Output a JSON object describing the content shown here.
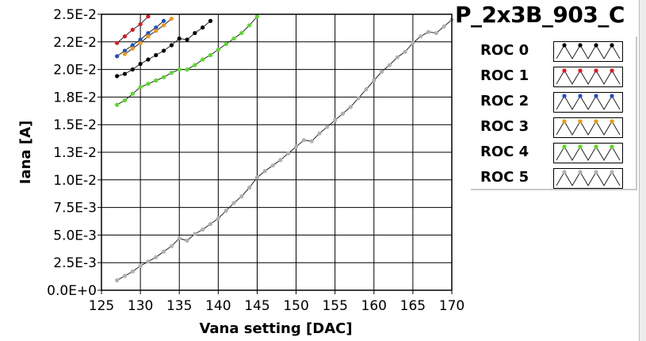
{
  "title": "P_2x3B_903_C",
  "colors": {
    "background": "#ffffff",
    "grid": "#000000",
    "ROC 0": "#000000",
    "ROC 1": "#e0181e",
    "ROC 2": "#1f4fc8",
    "ROC 3": "#f0960f",
    "ROC 4": "#55dd22",
    "ROC 5": "#b0b0b0"
  },
  "chart_data": {
    "type": "line",
    "title": "P_2x3B_903_C",
    "xlabel": "Vana setting [DAC]",
    "ylabel": "Iana [A]",
    "xlim": [
      125,
      170
    ],
    "ylim": [
      0,
      0.025
    ],
    "x_ticks": [
      125,
      130,
      135,
      140,
      145,
      150,
      155,
      160,
      165,
      170
    ],
    "x_tick_labels": [
      "125",
      "130",
      "135",
      "140",
      "145",
      "150",
      "155",
      "160",
      "165",
      "170"
    ],
    "y_ticks": [
      0,
      0.0025,
      0.005,
      0.0075,
      0.01,
      0.0125,
      0.015,
      0.0175,
      0.02,
      0.0225,
      0.025
    ],
    "y_tick_labels": [
      "0.0E+0",
      "2.5E-3",
      "5.0E-3",
      "7.5E-3",
      "1.0E-2",
      "1.3E-2",
      "1.5E-2",
      "1.8E-2",
      "2.0E-2",
      "2.2E-2",
      "2.5E-2"
    ],
    "grid": true,
    "legend_position": "right",
    "series": [
      {
        "name": "ROC 0",
        "color": "#000000",
        "x": [
          127,
          128,
          129,
          130,
          131,
          132,
          133,
          134,
          135,
          136,
          137,
          138,
          139
        ],
        "y": [
          0.0194,
          0.0196,
          0.02,
          0.0205,
          0.0209,
          0.0213,
          0.0217,
          0.0222,
          0.0228,
          0.0227,
          0.0233,
          0.0238,
          0.0244
        ]
      },
      {
        "name": "ROC 1",
        "color": "#e0181e",
        "x": [
          127,
          128,
          129,
          130,
          131
        ],
        "y": [
          0.0224,
          0.023,
          0.0236,
          0.0241,
          0.0248
        ]
      },
      {
        "name": "ROC 2",
        "color": "#1f4fc8",
        "x": [
          127,
          128,
          129,
          130,
          131,
          132,
          133
        ],
        "y": [
          0.0212,
          0.0217,
          0.0222,
          0.0227,
          0.0233,
          0.0238,
          0.0244
        ]
      },
      {
        "name": "ROC 3",
        "color": "#f0960f",
        "x": [
          128,
          129,
          130,
          131,
          132,
          133,
          134
        ],
        "y": [
          0.0214,
          0.0219,
          0.0224,
          0.023,
          0.0235,
          0.024,
          0.0246
        ]
      },
      {
        "name": "ROC 4",
        "color": "#55dd22",
        "x": [
          127,
          128,
          129,
          130,
          131,
          132,
          133,
          134,
          135,
          136,
          137,
          138,
          139,
          140,
          141,
          142,
          143,
          144,
          145
        ],
        "y": [
          0.0168,
          0.0172,
          0.0178,
          0.0184,
          0.0187,
          0.019,
          0.0193,
          0.0197,
          0.02,
          0.02,
          0.0204,
          0.0209,
          0.0213,
          0.0218,
          0.0223,
          0.0228,
          0.0233,
          0.024,
          0.0248
        ]
      },
      {
        "name": "ROC 5",
        "color": "#b0b0b0",
        "x": [
          127,
          128,
          129,
          130,
          131,
          132,
          133,
          134,
          135,
          136,
          137,
          138,
          139,
          140,
          141,
          142,
          143,
          144,
          145,
          146,
          147,
          148,
          149,
          150,
          151,
          152,
          153,
          154,
          155,
          156,
          157,
          158,
          159,
          160,
          161,
          162,
          163,
          164,
          165,
          166,
          167,
          168,
          169,
          170
        ],
        "y": [
          0.0009,
          0.0013,
          0.0017,
          0.0022,
          0.0026,
          0.003,
          0.0035,
          0.004,
          0.0047,
          0.0045,
          0.0051,
          0.0055,
          0.006,
          0.0065,
          0.0072,
          0.0079,
          0.0085,
          0.0093,
          0.0102,
          0.0108,
          0.0113,
          0.0118,
          0.0124,
          0.013,
          0.0136,
          0.0135,
          0.0142,
          0.0148,
          0.0154,
          0.016,
          0.0166,
          0.0174,
          0.0182,
          0.019,
          0.0198,
          0.0204,
          0.0211,
          0.0216,
          0.0224,
          0.023,
          0.0234,
          0.0233,
          0.0239,
          0.0245
        ]
      }
    ]
  },
  "legend": {
    "items": [
      {
        "label": "ROC 0",
        "color": "#000000"
      },
      {
        "label": "ROC 1",
        "color": "#e0181e"
      },
      {
        "label": "ROC 2",
        "color": "#1f4fc8"
      },
      {
        "label": "ROC 3",
        "color": "#f0960f"
      },
      {
        "label": "ROC 4",
        "color": "#55dd22"
      },
      {
        "label": "ROC 5",
        "color": "#b0b0b0"
      }
    ]
  }
}
